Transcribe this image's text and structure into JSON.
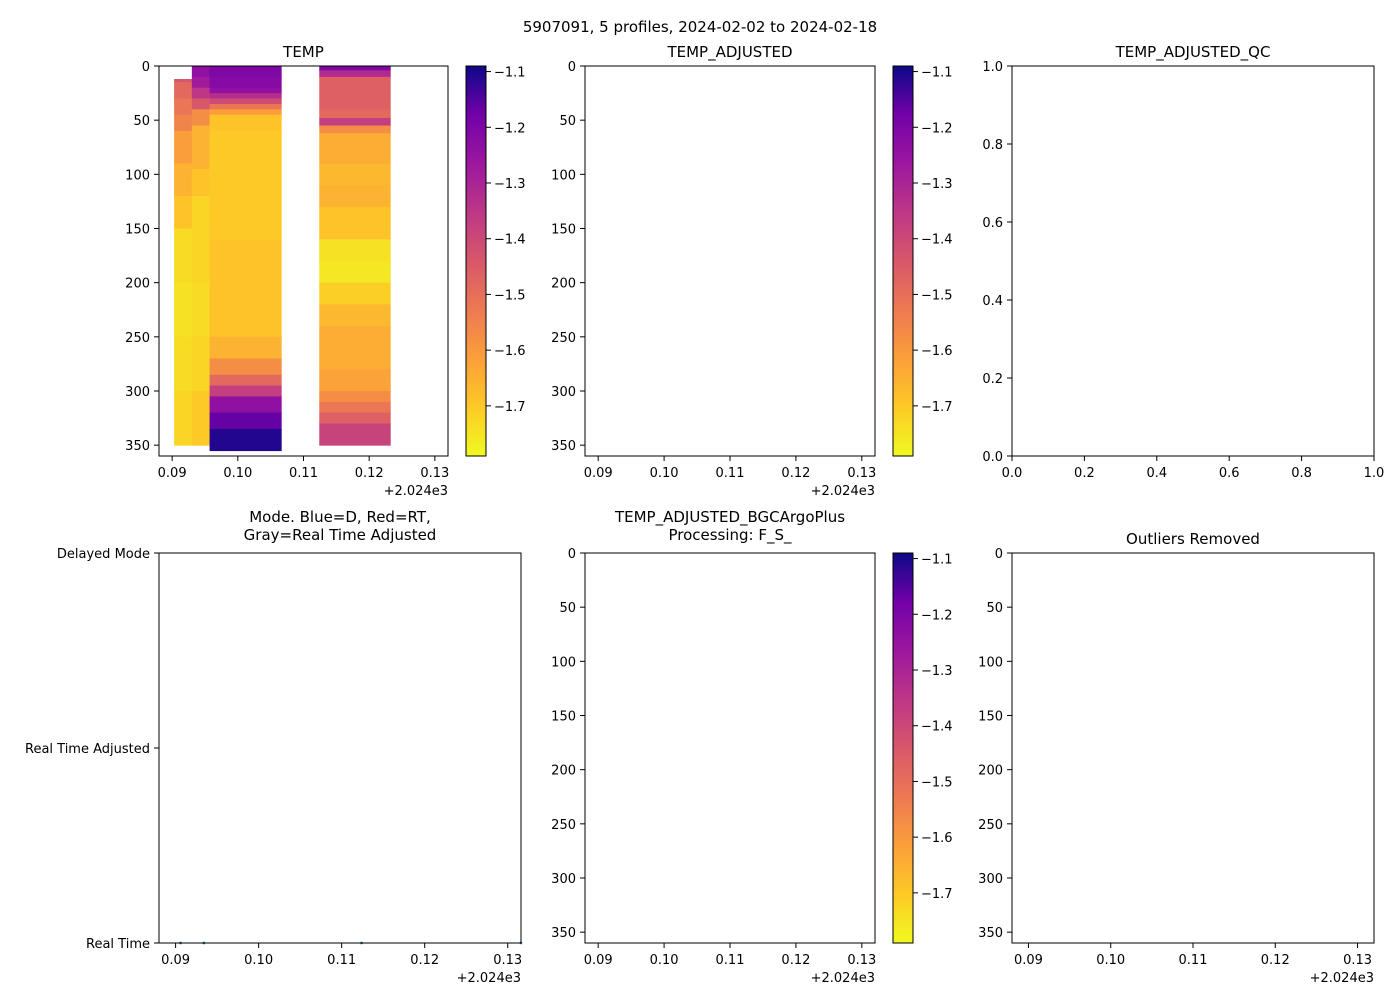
{
  "figure": {
    "suptitle": "5907091, 5 profiles, 2024-02-02 to 2024-02-18"
  },
  "chart_data": [
    {
      "type": "heatmap",
      "title": "TEMP",
      "xlim": [
        2024.088,
        2024.132
      ],
      "xticks": [
        0.09,
        0.1,
        0.11,
        0.12,
        0.13
      ],
      "xtick_labels": [
        "0.09",
        "0.10",
        "0.11",
        "0.12",
        "0.13"
      ],
      "x_offset_label": "+2.024e3",
      "ylim": [
        360,
        0
      ],
      "yticks": [
        0,
        50,
        100,
        150,
        200,
        250,
        300,
        350
      ],
      "ytick_labels": [
        "0",
        "50",
        "100",
        "150",
        "200",
        "250",
        "300",
        "350"
      ],
      "colormap": "plasma_r",
      "colorbar": {
        "vmin": -1.79,
        "vmax": -1.09,
        "ticks": [
          -1.1,
          -1.2,
          -1.3,
          -1.4,
          -1.5,
          -1.6,
          -1.7
        ],
        "tick_labels": [
          "−1.1",
          "−1.2",
          "−1.3",
          "−1.4",
          "−1.5",
          "−1.6",
          "−1.7"
        ]
      },
      "columns": [
        {
          "x0": 2024.0903,
          "x1": 2024.093,
          "cells": [
            [
              12,
              15,
              -1.48
            ],
            [
              15,
              30,
              -1.52
            ],
            [
              30,
              45,
              -1.55
            ],
            [
              45,
              60,
              -1.58
            ],
            [
              60,
              90,
              -1.63
            ],
            [
              90,
              120,
              -1.67
            ],
            [
              120,
              150,
              -1.7
            ],
            [
              150,
              200,
              -1.74
            ],
            [
              200,
              250,
              -1.75
            ],
            [
              250,
              300,
              -1.74
            ],
            [
              300,
              350,
              -1.73
            ]
          ]
        },
        {
          "x0": 2024.093,
          "x1": 2024.0957,
          "cells": [
            [
              0,
              10,
              -1.3
            ],
            [
              10,
              20,
              -1.33
            ],
            [
              20,
              30,
              -1.4
            ],
            [
              30,
              40,
              -1.48
            ],
            [
              40,
              55,
              -1.6
            ],
            [
              55,
              95,
              -1.67
            ],
            [
              95,
              120,
              -1.7
            ],
            [
              120,
              200,
              -1.73
            ],
            [
              200,
              250,
              -1.74
            ],
            [
              250,
              300,
              -1.73
            ],
            [
              300,
              350,
              -1.71
            ]
          ]
        },
        {
          "x0": 2024.0957,
          "x1": 2024.1066,
          "cells": [
            [
              0,
              10,
              -1.27
            ],
            [
              10,
              20,
              -1.28
            ],
            [
              20,
              25,
              -1.3
            ],
            [
              25,
              30,
              -1.38
            ],
            [
              30,
              35,
              -1.45
            ],
            [
              35,
              40,
              -1.55
            ],
            [
              40,
              45,
              -1.63
            ],
            [
              45,
              60,
              -1.7
            ],
            [
              60,
              160,
              -1.71
            ],
            [
              160,
              250,
              -1.7
            ],
            [
              250,
              270,
              -1.67
            ],
            [
              270,
              285,
              -1.6
            ],
            [
              285,
              295,
              -1.52
            ],
            [
              295,
              305,
              -1.42
            ],
            [
              305,
              320,
              -1.3
            ],
            [
              320,
              335,
              -1.22
            ],
            [
              335,
              355,
              -1.12
            ]
          ]
        },
        {
          "x0": 2024.1124,
          "x1": 2024.1232,
          "cells": [
            [
              0,
              4,
              -1.27
            ],
            [
              4,
              10,
              -1.37
            ],
            [
              10,
              40,
              -1.5
            ],
            [
              40,
              48,
              -1.52
            ],
            [
              48,
              55,
              -1.42
            ],
            [
              55,
              62,
              -1.6
            ],
            [
              62,
              90,
              -1.66
            ],
            [
              90,
              110,
              -1.68
            ],
            [
              110,
              130,
              -1.67
            ],
            [
              130,
              160,
              -1.7
            ],
            [
              160,
              180,
              -1.75
            ],
            [
              180,
              200,
              -1.76
            ],
            [
              200,
              220,
              -1.72
            ],
            [
              220,
              240,
              -1.68
            ],
            [
              240,
              280,
              -1.66
            ],
            [
              280,
              300,
              -1.64
            ],
            [
              300,
              310,
              -1.6
            ],
            [
              310,
              320,
              -1.55
            ],
            [
              320,
              330,
              -1.5
            ],
            [
              330,
              350,
              -1.43
            ]
          ]
        }
      ]
    },
    {
      "type": "heatmap",
      "title": "TEMP_ADJUSTED",
      "xlim": [
        2024.088,
        2024.132
      ],
      "xticks": [
        0.09,
        0.1,
        0.11,
        0.12,
        0.13
      ],
      "xtick_labels": [
        "0.09",
        "0.10",
        "0.11",
        "0.12",
        "0.13"
      ],
      "x_offset_label": "+2.024e3",
      "ylim": [
        360,
        0
      ],
      "yticks": [
        0,
        50,
        100,
        150,
        200,
        250,
        300,
        350
      ],
      "ytick_labels": [
        "0",
        "50",
        "100",
        "150",
        "200",
        "250",
        "300",
        "350"
      ],
      "colorbar": {
        "vmin": -1.79,
        "vmax": -1.09,
        "ticks": [
          -1.1,
          -1.2,
          -1.3,
          -1.4,
          -1.5,
          -1.6,
          -1.7
        ],
        "tick_labels": [
          "−1.1",
          "−1.2",
          "−1.3",
          "−1.4",
          "−1.5",
          "−1.6",
          "−1.7"
        ]
      },
      "columns": []
    },
    {
      "type": "scatter",
      "title": "TEMP_ADJUSTED_QC",
      "xlim": [
        0,
        1
      ],
      "xticks": [
        0.0,
        0.2,
        0.4,
        0.6,
        0.8,
        1.0
      ],
      "xtick_labels": [
        "0.0",
        "0.2",
        "0.4",
        "0.6",
        "0.8",
        "1.0"
      ],
      "ylim": [
        0,
        1
      ],
      "yticks": [
        0.0,
        0.2,
        0.4,
        0.6,
        0.8,
        1.0
      ],
      "ytick_labels": [
        "0.0",
        "0.2",
        "0.4",
        "0.6",
        "0.8",
        "1.0"
      ]
    },
    {
      "type": "scatter",
      "title_lines": [
        "Mode. Blue=D, Red=RT,",
        "Gray=Real Time Adjusted"
      ],
      "xlim": [
        2024.088,
        2024.1316
      ],
      "xticks": [
        0.09,
        0.1,
        0.11,
        0.12,
        0.13
      ],
      "xtick_labels": [
        "0.09",
        "0.10",
        "0.11",
        "0.12",
        "0.13"
      ],
      "x_offset_label": "+2.024e3",
      "ylim": [
        0,
        2
      ],
      "ytick_labels": [
        "Delayed Mode",
        "Real Time Adjusted",
        "Real Time"
      ],
      "points": [
        {
          "x": 2024.0906,
          "y": 0
        },
        {
          "x": 2024.0934,
          "y": 0
        },
        {
          "x": 2024.1124,
          "y": 0
        },
        {
          "x": 2024.1316,
          "y": 0
        }
      ]
    },
    {
      "type": "heatmap",
      "title_lines": [
        "TEMP_ADJUSTED_BGCArgoPlus",
        "Processing: F_S_"
      ],
      "xlim": [
        2024.088,
        2024.132
      ],
      "xticks": [
        0.09,
        0.1,
        0.11,
        0.12,
        0.13
      ],
      "xtick_labels": [
        "0.09",
        "0.10",
        "0.11",
        "0.12",
        "0.13"
      ],
      "x_offset_label": "+2.024e3",
      "ylim": [
        360,
        0
      ],
      "yticks": [
        0,
        50,
        100,
        150,
        200,
        250,
        300,
        350
      ],
      "ytick_labels": [
        "0",
        "50",
        "100",
        "150",
        "200",
        "250",
        "300",
        "350"
      ],
      "colorbar": {
        "vmin": -1.79,
        "vmax": -1.09,
        "ticks": [
          -1.1,
          -1.2,
          -1.3,
          -1.4,
          -1.5,
          -1.6,
          -1.7
        ],
        "tick_labels": [
          "−1.1",
          "−1.2",
          "−1.3",
          "−1.4",
          "−1.5",
          "−1.6",
          "−1.7"
        ]
      },
      "columns": []
    },
    {
      "type": "heatmap",
      "title": "Outliers Removed",
      "xlim": [
        2024.088,
        2024.132
      ],
      "xticks": [
        0.09,
        0.1,
        0.11,
        0.12,
        0.13
      ],
      "xtick_labels": [
        "0.09",
        "0.10",
        "0.11",
        "0.12",
        "0.13"
      ],
      "x_offset_label": "+2.024e3",
      "ylim": [
        360,
        0
      ],
      "yticks": [
        0,
        50,
        100,
        150,
        200,
        250,
        300,
        350
      ],
      "ytick_labels": [
        "0",
        "50",
        "100",
        "150",
        "200",
        "250",
        "300",
        "350"
      ],
      "columns": []
    }
  ]
}
